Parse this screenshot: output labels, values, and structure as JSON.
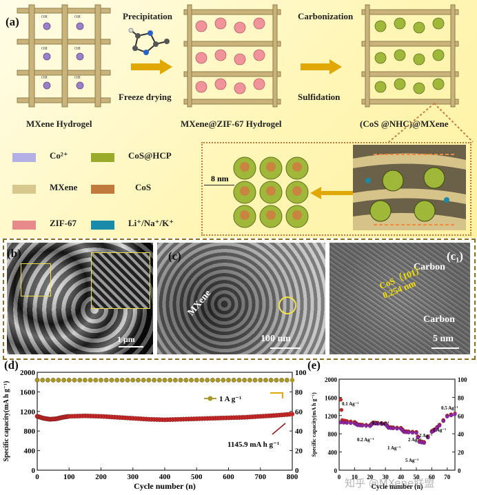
{
  "top": {
    "panel_label": "(a)",
    "steps": {
      "precipitation": "Precipitation",
      "freeze_drying": "Freeze drying",
      "carbonization": "Carbonization",
      "sulfidation": "Sulfidation"
    },
    "stages": [
      "MXene Hydrogel",
      "MXene@ZIF-67 Hydrogel",
      "(CoS @NHC)@MXene"
    ],
    "oh_label": "OH",
    "ho_label": "HO",
    "inset_scale": "8 nm"
  },
  "legend": [
    {
      "label": "Co²⁺",
      "color": "#b3b0e6"
    },
    {
      "label": "CoS@HCP",
      "color": "#9aab2c"
    },
    {
      "label": "MXene",
      "color": "#d8c88e"
    },
    {
      "label": "CoS",
      "color": "#c07a3c"
    },
    {
      "label": "ZIF-67",
      "color": "#e88a8c"
    },
    {
      "label": "Li⁺/Na⁺/K⁺",
      "color": "#1a8aa8"
    }
  ],
  "micrographs": {
    "b": {
      "label": "(b)",
      "scale": "1 μm"
    },
    "c": {
      "label": "(c)",
      "mxene": "MXene",
      "scale": "100 nm"
    },
    "c1": {
      "label": "(c₁)",
      "carbon1": "Carbon",
      "carbon2": "Carbon",
      "cos": "CoS（101）",
      "d": "0.254 nm",
      "scale": "5 nm"
    }
  },
  "chart_data": [
    {
      "panel": "(d)",
      "type": "scatter",
      "xlabel": "Cycle number (n)",
      "ylabel": "Specific capacity(mA h g⁻¹)",
      "y2label": "Coulombic efficiency (%)",
      "xlim": [
        0,
        800
      ],
      "ylim": [
        0,
        2000
      ],
      "y2lim": [
        0,
        100
      ],
      "xticks": [
        0,
        100,
        200,
        300,
        400,
        500,
        600,
        700,
        800
      ],
      "yticks": [
        0,
        400,
        800,
        1200,
        1600,
        2000
      ],
      "y2ticks": [
        0,
        20,
        40,
        60,
        80,
        100
      ],
      "legend": "1 A g⁻¹",
      "annotation": "1145.9 mA h g⁻¹",
      "series": [
        {
          "role": "capacity",
          "color": "#c62828",
          "x": [
            0,
            20,
            40,
            60,
            80,
            100,
            150,
            200,
            250,
            300,
            350,
            400,
            450,
            500,
            550,
            600,
            650,
            700,
            750,
            800
          ],
          "y": [
            1100,
            1060,
            1040,
            1050,
            1080,
            1100,
            1110,
            1100,
            1080,
            1060,
            1040,
            1030,
            1040,
            1050,
            1060,
            1070,
            1080,
            1100,
            1120,
            1146
          ]
        },
        {
          "role": "coulombic_efficiency",
          "color": "#a89a20",
          "x": [
            0,
            100,
            200,
            300,
            400,
            500,
            600,
            700,
            800
          ],
          "y": [
            92,
            92,
            92,
            92,
            92,
            92,
            92,
            92,
            92
          ]
        }
      ]
    },
    {
      "panel": "(e)",
      "type": "scatter",
      "xlabel": "Cycle number (n)",
      "ylabel": "Specific capacity(mA h g⁻¹)",
      "xlim": [
        0,
        75
      ],
      "ylim": [
        0,
        2000
      ],
      "y2lim": [
        0,
        100
      ],
      "xticks": [
        0,
        10,
        20,
        30,
        40,
        50,
        60,
        70
      ],
      "yticks": [
        0,
        400,
        800,
        1200,
        1600,
        2000
      ],
      "y2ticks": [
        0,
        20,
        40,
        60,
        80,
        100
      ],
      "rate_labels": [
        "0.1 Ag⁻¹",
        "0.2 Ag⁻¹",
        "0.5 Ag⁻¹",
        "1 Ag⁻¹",
        "2 Ag⁻¹",
        "5 Ag⁻¹",
        "2 Ag⁻¹",
        "1 Ag⁻¹",
        "0.5 Ag⁻¹"
      ],
      "series": [
        {
          "role": "discharge",
          "color": "#c62828",
          "x": [
            1,
            2,
            5,
            10,
            12,
            15,
            20,
            22,
            25,
            30,
            32,
            35,
            40,
            42,
            45,
            50,
            52,
            55,
            60,
            62,
            65,
            70,
            75
          ],
          "y": [
            1550,
            1100,
            1080,
            1060,
            1010,
            1000,
            990,
            1050,
            1040,
            1030,
            950,
            940,
            930,
            860,
            850,
            840,
            640,
            620,
            860,
            900,
            1000,
            1200,
            1250
          ]
        },
        {
          "role": "charge",
          "color": "#8e24aa",
          "x": [
            1,
            5,
            10,
            12,
            15,
            20,
            22,
            25,
            30,
            32,
            35,
            40,
            42,
            45,
            50,
            52,
            55,
            60,
            62,
            65,
            70,
            75
          ],
          "y": [
            1050,
            1040,
            1030,
            990,
            980,
            970,
            1030,
            1020,
            1010,
            930,
            920,
            910,
            840,
            830,
            820,
            620,
            600,
            840,
            880,
            980,
            1180,
            1230
          ]
        }
      ]
    }
  ],
  "watermark": "知乎 @MXene联盟"
}
